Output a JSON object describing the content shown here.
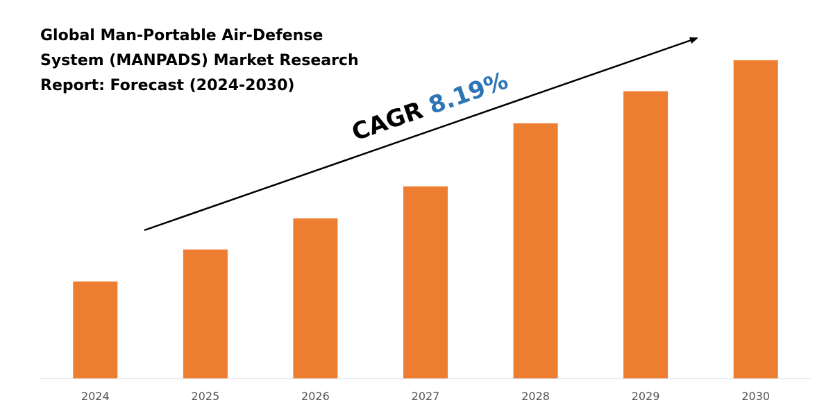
{
  "chart_data": {
    "type": "bar",
    "title_lines": [
      "Global Man-Portable Air-Defense",
      "System (MANPADS) Market Research",
      "Report: Forecast (2024-2030)"
    ],
    "categories": [
      "2024",
      "2025",
      "2026",
      "2027",
      "2028",
      "2029",
      "2030"
    ],
    "values": [
      1.0,
      1.33,
      1.65,
      1.98,
      2.63,
      2.96,
      3.28
    ],
    "ylim": [
      0,
      3.8
    ],
    "grid": false,
    "value_axis_labels": false,
    "bar_color": "#ed7d31",
    "annotation": {
      "prefix": "CAGR ",
      "value": "8.19%",
      "prefix_color": "#000000",
      "value_color": "#2e75b6"
    }
  }
}
